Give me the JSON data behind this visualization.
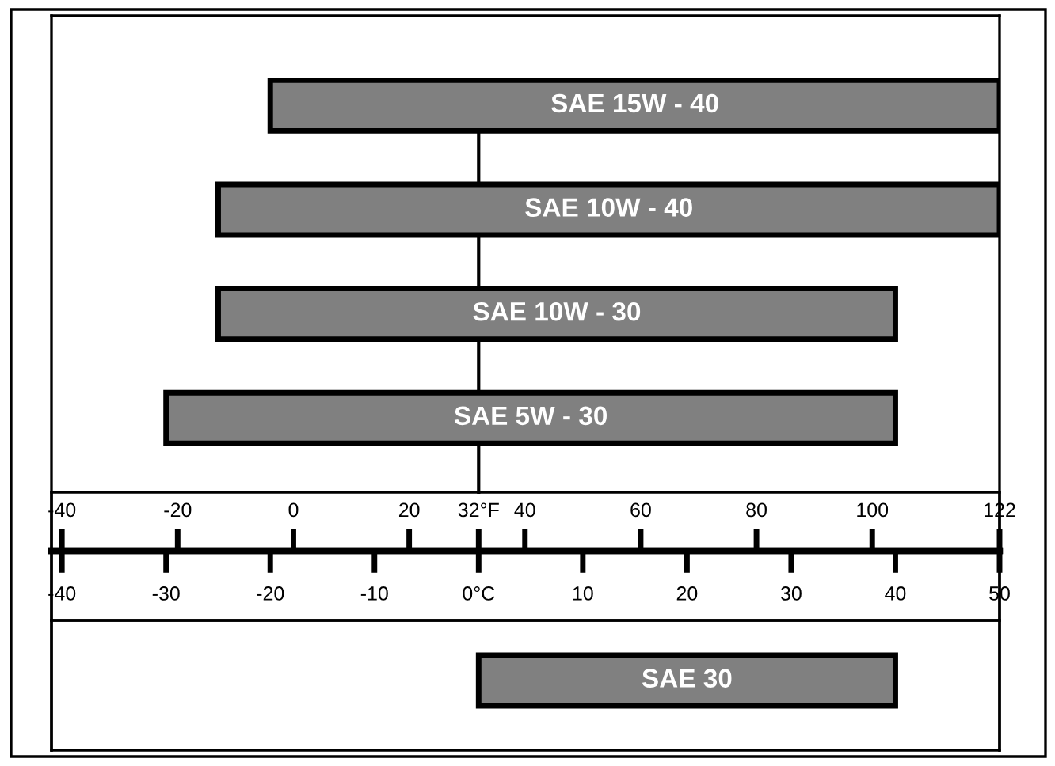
{
  "chart_data": {
    "type": "bar",
    "orientation": "horizontal",
    "categories": [
      "SAE 15W - 40",
      "SAE 10W - 40",
      "SAE 10W - 30",
      "SAE 5W - 30",
      "SAE 30"
    ],
    "base": [
      -20,
      -25,
      -25,
      -30,
      0
    ],
    "values": [
      70,
      75,
      65,
      70,
      40
    ],
    "color": "#808080",
    "xlim": [
      -41,
      50
    ],
    "xticks": [
      -40,
      -30,
      -20,
      -10,
      {
        "value": 0,
        "label": "0°C"
      },
      10,
      20,
      30,
      40,
      50
    ],
    "x2lim": [
      -41.8,
      122
    ],
    "x2ticks": [
      -40,
      -20,
      0,
      20,
      {
        "value": 32,
        "label": "32°F"
      },
      40,
      60,
      80,
      100,
      122
    ],
    "ref_lines": [
      {
        "axis": "x",
        "value": 0,
        "label": null
      }
    ]
  }
}
